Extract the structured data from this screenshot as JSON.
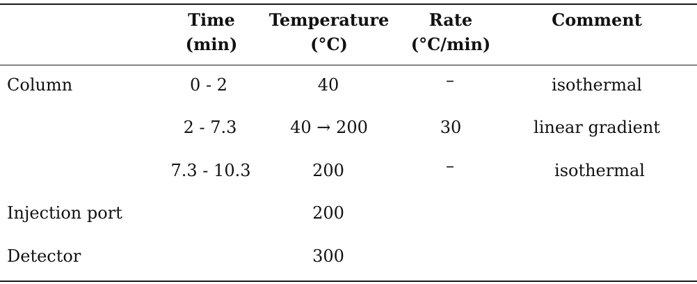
{
  "table": {
    "headers": [
      {
        "line1": "Time",
        "line2": "(min)"
      },
      {
        "line1": "Temperature",
        "line2": "(°C)"
      },
      {
        "line1": "Rate",
        "line2": "(°C/min)"
      },
      {
        "line1": "Comment",
        "line2": ""
      }
    ],
    "rows": [
      {
        "label": "Column",
        "time": "0 - 2",
        "temperature": "40",
        "rate": "–",
        "comment": "isothermal"
      },
      {
        "label": "",
        "time": "2 - 7.3",
        "temperature": "40 → 200",
        "rate": "30",
        "comment": "linear gradient"
      },
      {
        "label": "",
        "time": "7.3 - 10.3",
        "temperature": "200",
        "rate": "–",
        "comment": "isothermal"
      },
      {
        "label": "Injection port",
        "time": "",
        "temperature": "200",
        "rate": "",
        "comment": ""
      },
      {
        "label": "Detector",
        "time": "",
        "temperature": "300",
        "rate": "",
        "comment": ""
      }
    ]
  }
}
